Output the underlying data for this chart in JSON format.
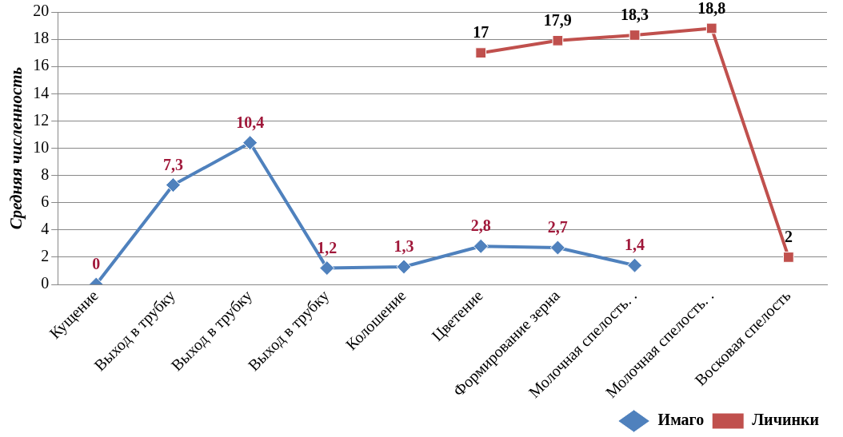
{
  "chart_data": {
    "type": "line",
    "ylabel": "Средняя численность",
    "categories": [
      "Кущение",
      "Выход в трубку",
      "Выход в трубку",
      "Выход в трубку",
      "Колошение",
      "Цветение",
      "Формирование зерна",
      "Молочная спелость. .",
      "Молочная спелость. .",
      "Восковая спелость"
    ],
    "series": [
      {
        "name": "Имаго",
        "color": "#4f81bd",
        "marker": "diamond",
        "values": [
          0,
          7.3,
          10.4,
          1.2,
          1.3,
          2.8,
          2.7,
          1.4,
          null,
          null
        ],
        "value_labels": [
          "0",
          "7,3",
          "10,4",
          "1,2",
          "1,3",
          "2,8",
          "2,7",
          "1,4",
          null,
          null
        ]
      },
      {
        "name": "Личинки",
        "color": "#c0504d",
        "marker": "square",
        "values": [
          null,
          null,
          null,
          null,
          null,
          17,
          17.9,
          18.3,
          18.8,
          2
        ],
        "value_labels": [
          null,
          null,
          null,
          null,
          null,
          "17",
          "17,9",
          "18,3",
          "18,8",
          "2"
        ]
      }
    ],
    "ylim": [
      0,
      20
    ],
    "yticks": [
      0,
      2,
      4,
      6,
      8,
      10,
      12,
      14,
      16,
      18,
      20
    ],
    "grid": "y",
    "legend": "bottom right"
  }
}
